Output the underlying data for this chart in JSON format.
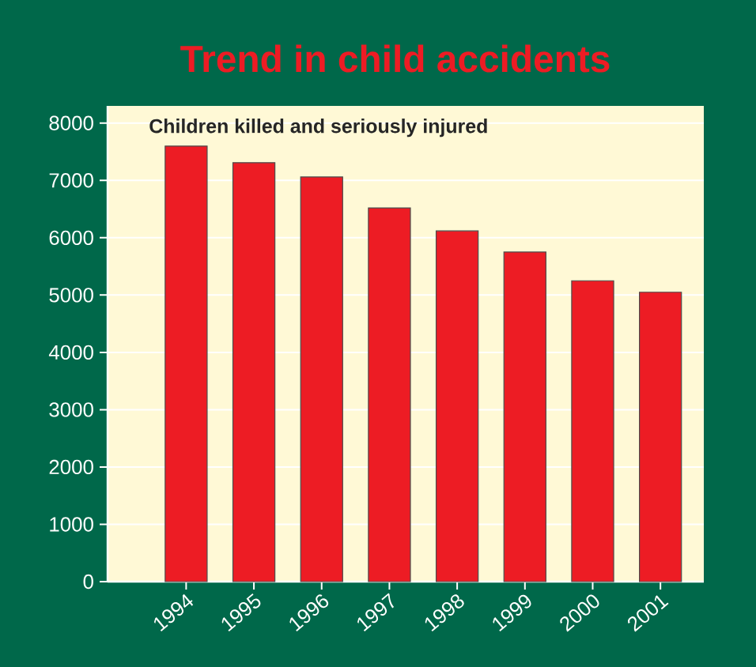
{
  "chart_data": {
    "type": "bar",
    "title": "Trend in child accidents",
    "subtitle": "Children killed and seriously injured",
    "categories": [
      "1994",
      "1995",
      "1996",
      "1997",
      "1998",
      "1999",
      "2000",
      "2001"
    ],
    "values": [
      7600,
      7310,
      7060,
      6520,
      6120,
      5750,
      5250,
      5050
    ],
    "color": "#ed1c24",
    "ylim": [
      0,
      8300
    ],
    "yticks": [
      0,
      1000,
      2000,
      3000,
      4000,
      5000,
      6000,
      7000,
      8000
    ],
    "grid": "y"
  }
}
